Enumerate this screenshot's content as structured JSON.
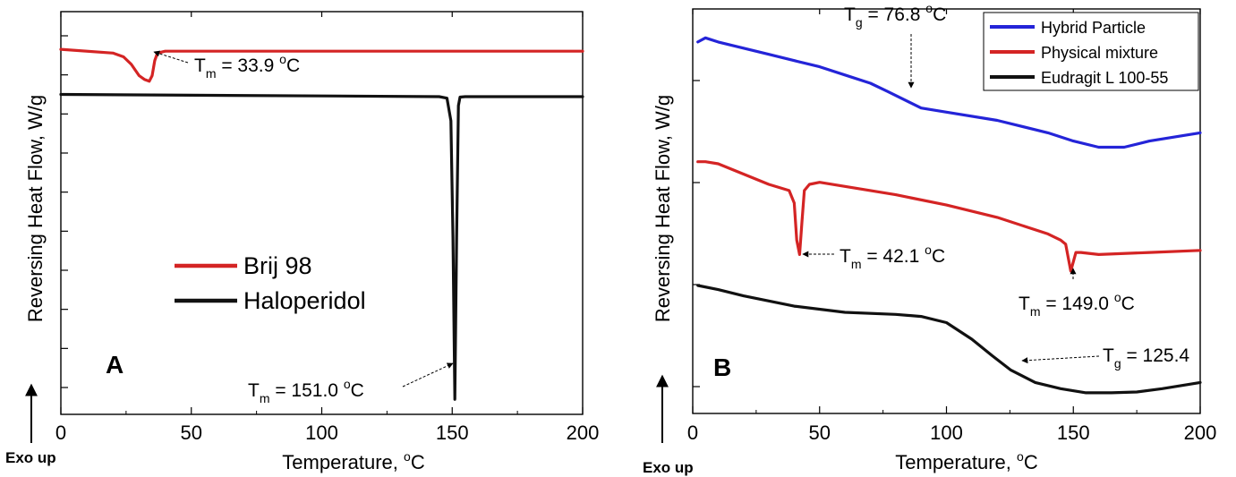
{
  "chart_data": [
    {
      "panel_label": "A",
      "type": "line",
      "xlabel_main": "Temperature, ",
      "xlabel_sup": "o",
      "xlabel_tail": "C",
      "ylabel": "Reversing Heat Flow, W/g",
      "exo_label": "Exo up",
      "xlim": [
        0,
        200
      ],
      "x_ticks": [
        0,
        50,
        100,
        150,
        200
      ],
      "x_tick_labels": [
        "0",
        "50",
        "100",
        "150",
        "200"
      ],
      "y_ticks_unlabeled": 10,
      "legend": {
        "placement": "center-left",
        "entries": [
          "Brij 98",
          "Haloperidol"
        ]
      },
      "series": [
        {
          "name": "Brij 98",
          "color": "#d42424",
          "x": [
            0,
            20,
            24,
            27,
            30,
            32,
            33.9,
            35,
            36,
            37,
            40,
            60,
            100,
            150,
            200
          ],
          "y": [
            0.95,
            0.94,
            0.93,
            0.91,
            0.88,
            0.87,
            0.865,
            0.88,
            0.92,
            0.94,
            0.945,
            0.945,
            0.945,
            0.945,
            0.945
          ]
        },
        {
          "name": "Haloperidol",
          "color": "#111111",
          "x": [
            0,
            50,
            100,
            145,
            148,
            149.5,
            150.3,
            151.0,
            151.7,
            152.4,
            153,
            155,
            200
          ],
          "y": [
            0.83,
            0.828,
            0.826,
            0.824,
            0.82,
            0.76,
            0.45,
            0.02,
            0.45,
            0.8,
            0.823,
            0.824,
            0.824
          ]
        }
      ],
      "annotations": [
        {
          "base": "T",
          "sub": "m",
          "main": " = 33.9 ",
          "sup": "o",
          "tail": "C",
          "x": 33.9
        },
        {
          "base": "T",
          "sub": "m",
          "main": " = 151.0 ",
          "sup": "o",
          "tail": "C",
          "x": 151.0
        }
      ]
    },
    {
      "panel_label": "B",
      "type": "line",
      "xlabel_main": "Temperature, ",
      "xlabel_sup": "o",
      "xlabel_tail": "C",
      "ylabel": "Reversing Heat Flow, W/g",
      "exo_label": "Exo up",
      "xlim": [
        0,
        200
      ],
      "x_ticks": [
        0,
        50,
        100,
        150,
        200
      ],
      "x_tick_labels": [
        "0",
        "50",
        "100",
        "150",
        "200"
      ],
      "y_ticks_unlabeled": 4,
      "legend": {
        "placement": "top-right",
        "entries": [
          "Hybrid Particle",
          "Physical mixture",
          "Eudragit L 100-55"
        ]
      },
      "series": [
        {
          "name": "Hybrid Particle",
          "color": "#2424d8",
          "x": [
            2,
            5,
            10,
            20,
            30,
            40,
            50,
            60,
            70,
            76.8,
            90,
            100,
            120,
            140,
            150,
            160,
            170,
            180,
            200
          ],
          "y": [
            0.92,
            0.93,
            0.92,
            0.905,
            0.89,
            0.875,
            0.86,
            0.84,
            0.82,
            0.8,
            0.76,
            0.75,
            0.73,
            0.7,
            0.68,
            0.665,
            0.665,
            0.68,
            0.7
          ]
        },
        {
          "name": "Physical mixture",
          "color": "#d42424",
          "x": [
            2,
            5,
            10,
            20,
            30,
            38,
            40,
            41,
            42.1,
            43,
            44,
            46,
            50,
            60,
            80,
            100,
            120,
            140,
            145,
            147,
            149.0,
            151,
            153,
            160,
            180,
            200
          ],
          "y": [
            0.63,
            0.63,
            0.625,
            0.6,
            0.575,
            0.56,
            0.53,
            0.44,
            0.405,
            0.48,
            0.56,
            0.575,
            0.58,
            0.57,
            0.55,
            0.525,
            0.495,
            0.455,
            0.44,
            0.43,
            0.365,
            0.41,
            0.41,
            0.405,
            0.41,
            0.415
          ]
        },
        {
          "name": "Eudragit L 100-55",
          "color": "#111111",
          "x": [
            2,
            10,
            20,
            40,
            60,
            80,
            90,
            100,
            110,
            118,
            125.4,
            135,
            145,
            155,
            165,
            175,
            185,
            200
          ],
          "y": [
            0.33,
            0.32,
            0.305,
            0.28,
            0.265,
            0.26,
            0.255,
            0.24,
            0.2,
            0.16,
            0.125,
            0.095,
            0.08,
            0.07,
            0.07,
            0.072,
            0.08,
            0.095
          ]
        }
      ],
      "annotations": [
        {
          "base": "T",
          "sub": "g",
          "main": " = 76.8 ",
          "sup": "o",
          "tail": "C",
          "x": 76.8
        },
        {
          "base": "T",
          "sub": "m",
          "main": " = 42.1 ",
          "sup": "o",
          "tail": "C",
          "x": 42.1
        },
        {
          "base": "T",
          "sub": "m",
          "main": " = 149.0 ",
          "sup": "o",
          "tail": "C",
          "x": 149.0
        },
        {
          "base": "T",
          "sub": "g",
          "main": " = 125.4",
          "sup": "",
          "tail": "",
          "x": 125.4
        }
      ]
    }
  ]
}
